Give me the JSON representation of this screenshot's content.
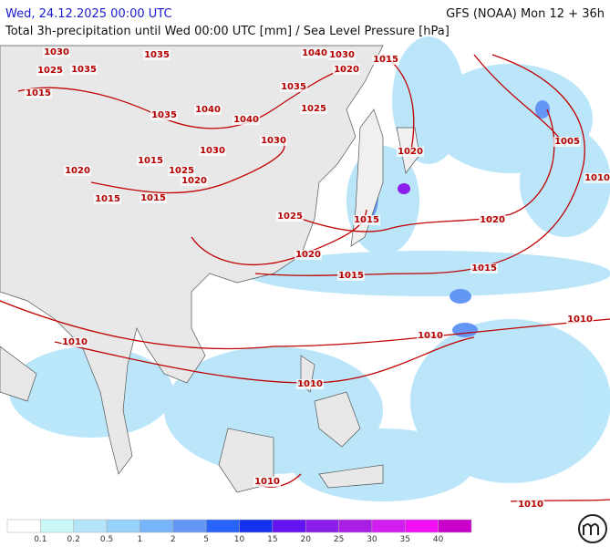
{
  "header": {
    "datetime": "Wed, 24.12.2025 00:00 UTC",
    "model": "GFS (NOAA) Mon 12 + 36h",
    "subtitle": "Total 3h-precipitation until Wed 00:00 UTC [mm] / Sea Level Pressure [hPa]"
  },
  "isobar_labels": [
    "1030",
    "1035",
    "1025",
    "1015",
    "1035",
    "1040",
    "1030",
    "1020",
    "1015",
    "1035",
    "1025",
    "1035",
    "1040",
    "1040",
    "1030",
    "1030",
    "1015",
    "1025",
    "1020",
    "1020",
    "1015",
    "1015",
    "1025",
    "1015",
    "1020",
    "1005",
    "1010",
    "1020",
    "1015",
    "1020",
    "1015",
    "1010",
    "1010",
    "1010",
    "1010",
    "1010",
    "1010"
  ],
  "legend": {
    "colors": [
      "#ffffff",
      "#c8f8f8",
      "#b4e4fa",
      "#96d2fa",
      "#78b4fa",
      "#6496f5",
      "#2864fa",
      "#1432f0",
      "#6414f0",
      "#8c1eeb",
      "#aa1ee6",
      "#d21ef0",
      "#f00ff5",
      "#c800c8"
    ],
    "labels": [
      0.1,
      0.2,
      0.5,
      1,
      2,
      5,
      10,
      15,
      20,
      25,
      30,
      35,
      40
    ]
  }
}
